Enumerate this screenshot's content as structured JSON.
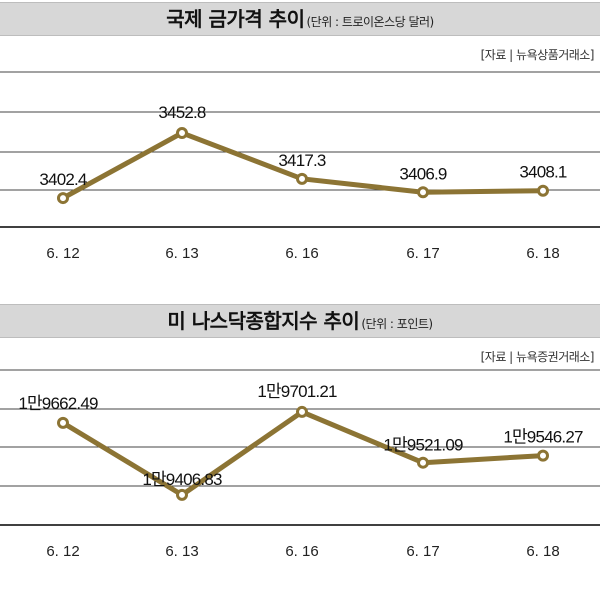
{
  "charts": [
    {
      "title": "국제 금가격 추이",
      "unit": "(단위 : 트로이온스당 달러)",
      "source": "[자료 | 뉴욕상품거래소]"
    },
    {
      "title": "미 나스닥종합지수 추이",
      "unit": "(단위 : 포인트)",
      "source": "[자료 | 뉴욕증권거래소]"
    }
  ],
  "chart_data": [
    {
      "type": "line",
      "title": "국제 금가격 추이",
      "categories": [
        "6. 12",
        "6. 13",
        "6. 16",
        "6. 17",
        "6. 18"
      ],
      "values": [
        3402.4,
        3452.8,
        3417.3,
        3406.9,
        3408.1
      ],
      "labels": [
        "3402.4",
        "3452.8",
        "3417.3",
        "3406.9",
        "3408.1"
      ],
      "ylim": [
        3380,
        3500
      ],
      "grid": true,
      "line_color": "#8c7434"
    },
    {
      "type": "line",
      "title": "미 나스닥종합지수 추이",
      "categories": [
        "6. 12",
        "6. 13",
        "6. 16",
        "6. 17",
        "6. 18"
      ],
      "values": [
        19662.49,
        19406.83,
        19701.21,
        19521.09,
        19546.27
      ],
      "labels": [
        "1만9662.49",
        "1만9406.83",
        "1만9701.21",
        "1만9521.09",
        "1만9546.27"
      ],
      "ylim": [
        19300,
        19850
      ],
      "grid": true,
      "line_color": "#8c7434"
    }
  ]
}
